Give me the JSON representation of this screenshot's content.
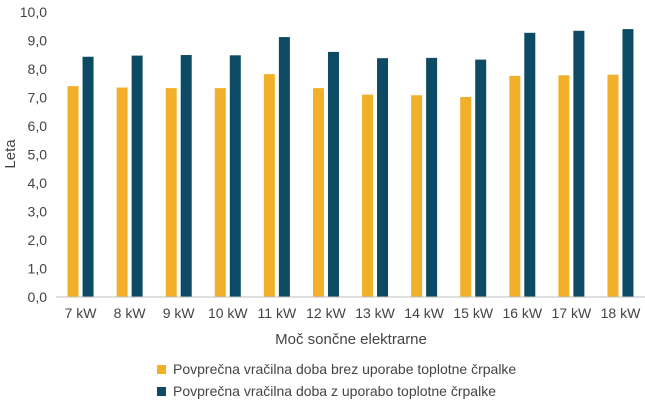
{
  "chart_data": {
    "type": "bar",
    "title": "",
    "xlabel": "Moč sončne elektrarne",
    "ylabel": "Leta",
    "ylim": [
      0,
      10
    ],
    "yticks": [
      "0,0",
      "1,0",
      "2,0",
      "3,0",
      "4,0",
      "5,0",
      "6,0",
      "7,0",
      "8,0",
      "9,0",
      "10,0"
    ],
    "grid": false,
    "legend_position": "bottom",
    "categories": [
      "7 kW",
      "8 kW",
      "9 kW",
      "10 kW",
      "11 kW",
      "12 kW",
      "13 kW",
      "14 kW",
      "15 kW",
      "16 kW",
      "17 kW",
      "18 kW"
    ],
    "series": [
      {
        "name": "Povprečna vračilna doba brez uporabe toplotne črpalke",
        "color": "#f2b02a",
        "values": [
          7.4,
          7.35,
          7.33,
          7.33,
          7.82,
          7.33,
          7.1,
          7.08,
          7.02,
          7.76,
          7.78,
          7.8
        ]
      },
      {
        "name": "Povprečna vračilna doba z uporabo toplotne črpalke",
        "color": "#0d4a63",
        "values": [
          8.43,
          8.47,
          8.49,
          8.48,
          9.12,
          8.6,
          8.38,
          8.39,
          8.33,
          9.27,
          9.34,
          9.4
        ]
      }
    ]
  }
}
